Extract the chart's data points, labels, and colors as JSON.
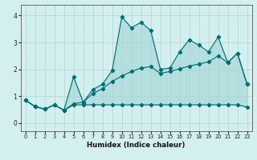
{
  "xlabel": "Humidex (Indice chaleur)",
  "background_color": "#d4efef",
  "grid_color": "#b8d8d8",
  "line_color": "#006e6e",
  "fill_color": "#a8d8d8",
  "xlim": [
    -0.5,
    23.5
  ],
  "ylim": [
    -0.3,
    4.4
  ],
  "xticks": [
    0,
    1,
    2,
    3,
    4,
    5,
    6,
    7,
    8,
    9,
    10,
    11,
    12,
    13,
    14,
    15,
    16,
    17,
    18,
    19,
    20,
    21,
    22,
    23
  ],
  "yticks": [
    0,
    1,
    2,
    3,
    4
  ],
  "series1_x": [
    0,
    1,
    2,
    3,
    4,
    5,
    6,
    7,
    8,
    9,
    10,
    11,
    12,
    13,
    14,
    15,
    16,
    17,
    18,
    19,
    20,
    21,
    22,
    23
  ],
  "series1_y": [
    0.85,
    0.62,
    0.52,
    0.68,
    0.48,
    1.72,
    0.78,
    1.25,
    1.45,
    1.95,
    3.95,
    3.55,
    3.75,
    3.45,
    2.0,
    2.05,
    2.65,
    3.1,
    2.9,
    2.65,
    3.2,
    2.25,
    2.6,
    1.45
  ],
  "series2_x": [
    0,
    1,
    2,
    3,
    4,
    5,
    6,
    7,
    8,
    9,
    10,
    11,
    12,
    13,
    14,
    15,
    16,
    17,
    18,
    19,
    20,
    21,
    22,
    23
  ],
  "series2_y": [
    0.85,
    0.62,
    0.52,
    0.68,
    0.48,
    0.72,
    0.78,
    1.1,
    1.28,
    1.55,
    1.75,
    1.92,
    2.05,
    2.1,
    1.85,
    1.92,
    2.02,
    2.12,
    2.2,
    2.28,
    2.5,
    2.25,
    2.6,
    1.45
  ],
  "series3_x": [
    0,
    1,
    2,
    3,
    4,
    5,
    6,
    7,
    8,
    9,
    10,
    11,
    12,
    13,
    14,
    15,
    16,
    17,
    18,
    19,
    20,
    21,
    22,
    23
  ],
  "series3_y": [
    0.85,
    0.62,
    0.52,
    0.68,
    0.48,
    0.68,
    0.68,
    0.68,
    0.68,
    0.68,
    0.68,
    0.68,
    0.68,
    0.68,
    0.68,
    0.68,
    0.68,
    0.68,
    0.68,
    0.68,
    0.68,
    0.68,
    0.68,
    0.6
  ]
}
